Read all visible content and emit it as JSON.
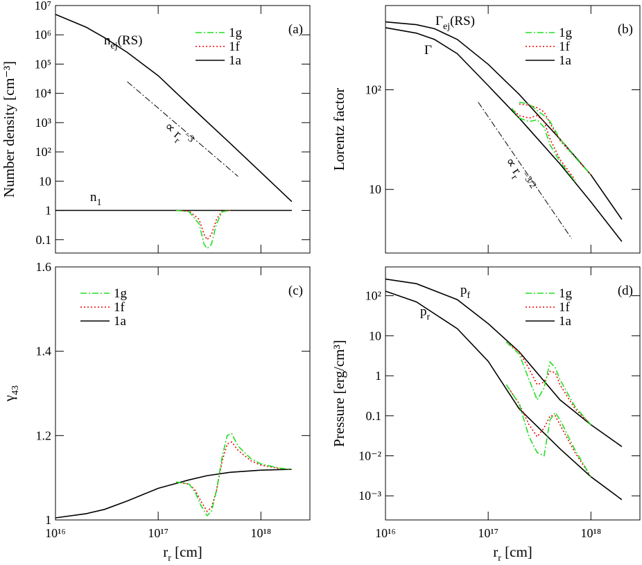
{
  "chart_data": [
    {
      "type": "line",
      "panel_label": "(a)",
      "xlog": true,
      "ylog": true,
      "ylabel": "Number density [cm⁻³]",
      "xlim": [
        1e+16,
        3e+18
      ],
      "ylim": [
        0.035,
        10000000.0
      ],
      "xticks": [
        1e+16,
        1e+17,
        1e+18
      ],
      "yticks": [
        {
          "value": 10000000.0,
          "label": "10⁷"
        },
        {
          "value": 1000000.0,
          "label": "10⁶"
        },
        {
          "value": 100000.0,
          "label": "10⁵"
        },
        {
          "value": 10000.0,
          "label": "10⁴"
        },
        {
          "value": 1000.0,
          "label": "10³"
        },
        {
          "value": 100,
          "label": "10²"
        },
        10,
        1,
        0.1
      ],
      "series": [
        {
          "name": "1g",
          "color": "#22dd22",
          "dash": "9,3,2,3",
          "lines": [
            {
              "x": [
                1.5e+17,
                2e+17,
                2.5e+17,
                2.8e+17,
                3e+17,
                3.3e+17,
                3.7e+17,
                4.2e+17,
                5e+17
              ],
              "values": [
                1,
                0.9,
                0.35,
                0.07,
                0.05,
                0.07,
                0.35,
                0.9,
                1
              ]
            }
          ]
        },
        {
          "name": "1f",
          "color": "#ee0000",
          "dash": "2,3",
          "lines": [
            {
              "x": [
                1.5e+17,
                2e+17,
                2.5e+17,
                2.8e+17,
                3e+17,
                3.3e+17,
                3.7e+17,
                4.2e+17,
                5e+17
              ],
              "values": [
                1,
                0.95,
                0.5,
                0.15,
                0.1,
                0.15,
                0.5,
                0.95,
                1
              ]
            }
          ]
        },
        {
          "name": "1a",
          "color": "#000000",
          "dash": "none",
          "lines": [
            {
              "x": [
                1e+16,
                2e+16,
                3e+16,
                5e+16,
                1e+17,
                2e+17,
                5e+17,
                1e+18,
                2e+18
              ],
              "values": [
                5000000.0,
                1800000.0,
                800000.0,
                250000.0,
                40000.0,
                4000.0,
                200,
                20,
                2
              ]
            },
            {
              "x": [
                1e+16,
                2e+18
              ],
              "values": [
                1,
                1
              ]
            }
          ]
        }
      ],
      "annotations": [
        {
          "parts": [
            {
              "text": "n"
            },
            {
              "text": "ej",
              "shift": "sub"
            },
            {
              "text": "(RS)"
            }
          ]
        },
        {
          "parts": [
            {
              "text": "n"
            },
            {
              "text": "1",
              "shift": "sub"
            }
          ]
        }
      ],
      "guide": {
        "x": [
          5e+16,
          6e+17
        ],
        "values": [
          25000.0,
          14.5
        ],
        "label": {
          "parts": [
            {
              "text": "∝ r"
            },
            {
              "text": "r",
              "shift": "sub"
            },
            {
              "text": "−3",
              "shift": "sup"
            }
          ]
        }
      }
    },
    {
      "type": "line",
      "panel_label": "(b)",
      "xlog": true,
      "ylog": true,
      "ylabel": "Lorentz factor",
      "xlim": [
        1e+16,
        3e+18
      ],
      "ylim": [
        2.3,
        700
      ],
      "xticks": [
        1e+16,
        1e+17,
        1e+18
      ],
      "yticks": [
        {
          "value": 100,
          "label": "10²"
        },
        10
      ],
      "series": [
        {
          "name": "1g",
          "color": "#22dd22",
          "dash": "9,3,2,3",
          "lines": [
            {
              "x": [
                2e+17,
                2.5e+17,
                3e+17,
                3.5e+17,
                4e+17,
                5e+17,
                7e+17,
                1e+18
              ],
              "values": [
                75,
                72,
                62,
                55,
                48,
                32,
                21,
                14
              ]
            },
            {
              "x": [
                1.7e+17,
                2e+17,
                2.5e+17,
                3e+17,
                3.5e+17,
                4e+17,
                5e+17,
                7e+17
              ],
              "values": [
                65,
                52,
                48,
                50,
                42,
                28,
                19,
                12
              ]
            }
          ]
        },
        {
          "name": "1f",
          "color": "#ee0000",
          "dash": "2,3",
          "lines": [
            {
              "x": [
                2e+17,
                2.5e+17,
                3e+17,
                3.5e+17,
                4e+17,
                5e+17,
                7e+17,
                1e+18
              ],
              "values": [
                72,
                70,
                66,
                60,
                46,
                31,
                21,
                14
              ]
            },
            {
              "x": [
                1.7e+17,
                2e+17,
                2.5e+17,
                3e+17,
                3.5e+17,
                4e+17,
                5e+17,
                7e+17
              ],
              "values": [
                65,
                55,
                52,
                55,
                48,
                32,
                20,
                12.5
              ]
            }
          ]
        },
        {
          "name": "1a",
          "color": "#000000",
          "dash": "none",
          "lines": [
            {
              "x": [
                1e+16,
                2e+16,
                3e+16,
                5e+16,
                1e+17,
                2e+17,
                5e+17,
                1e+18,
                2e+18
              ],
              "values": [
                480,
                450,
                410,
                320,
                180,
                90,
                32,
                14,
                5
              ]
            },
            {
              "x": [
                1e+16,
                2e+16,
                3e+16,
                5e+16,
                1e+17,
                2e+17,
                5e+17,
                1e+18,
                2e+18
              ],
              "values": [
                420,
                370,
                320,
                230,
                110,
                52,
                18,
                7.5,
                3
              ]
            }
          ]
        }
      ],
      "annotations": [
        {
          "parts": [
            {
              "text": "Γ"
            },
            {
              "text": "ej",
              "shift": "sub"
            },
            {
              "text": "(RS)"
            }
          ]
        },
        {
          "parts": [
            {
              "text": "Γ"
            }
          ]
        }
      ],
      "guide": {
        "x": [
          8e+16,
          6.5e+17
        ],
        "values": [
          75,
          3.2
        ],
        "label": {
          "parts": [
            {
              "text": "∝ r"
            },
            {
              "text": "r",
              "shift": "sub"
            },
            {
              "text": "−3/2",
              "shift": "sup"
            }
          ]
        }
      }
    },
    {
      "type": "line",
      "panel_label": "(c)",
      "xlog": true,
      "ylog": false,
      "ylabel": {
        "parts": [
          {
            "text": "γ"
          },
          {
            "text": "43",
            "shift": "sub"
          }
        ]
      },
      "xlabel": {
        "parts": [
          {
            "text": "r"
          },
          {
            "text": "r",
            "shift": "sub"
          },
          {
            "text": " [cm]"
          }
        ]
      },
      "xlim": [
        1e+16,
        3e+18
      ],
      "ylim": [
        1,
        1.6
      ],
      "xticks": [
        {
          "value": 1e+16,
          "label": "10¹⁶"
        },
        {
          "value": 1e+17,
          "label": "10¹⁷"
        },
        {
          "value": 1e+18,
          "label": "10¹⁸"
        }
      ],
      "yticks": [
        1,
        1.2,
        1.4,
        1.6
      ],
      "series": [
        {
          "name": "1g",
          "color": "#22dd22",
          "dash": "9,3,2,3",
          "lines": [
            {
              "x": [
                1.5e+17,
                2e+17,
                2.3e+17,
                2.6e+17,
                3e+17,
                3.3e+17,
                3.7e+17,
                4.2e+17,
                4.7e+17,
                5.2e+17,
                6e+17,
                8e+17,
                1e+18,
                1.5e+18,
                2e+18
              ],
              "values": [
                1.09,
                1.085,
                1.065,
                1.035,
                1.01,
                1.02,
                1.07,
                1.15,
                1.2,
                1.205,
                1.175,
                1.145,
                1.133,
                1.123,
                1.12
              ]
            }
          ]
        },
        {
          "name": "1f",
          "color": "#ee0000",
          "dash": "2,3",
          "lines": [
            {
              "x": [
                1.5e+17,
                2e+17,
                2.3e+17,
                2.6e+17,
                3e+17,
                3.3e+17,
                3.7e+17,
                4.2e+17,
                4.7e+17,
                5.2e+17,
                6e+17,
                8e+17,
                1e+18,
                1.5e+18,
                2e+18
              ],
              "values": [
                1.09,
                1.085,
                1.07,
                1.045,
                1.02,
                1.03,
                1.07,
                1.14,
                1.18,
                1.185,
                1.165,
                1.14,
                1.13,
                1.122,
                1.12
              ]
            }
          ]
        },
        {
          "name": "1a",
          "color": "#000000",
          "dash": "none",
          "lines": [
            {
              "x": [
                1e+16,
                2e+16,
                3e+16,
                5e+16,
                1e+17,
                2e+17,
                3e+17,
                5e+17,
                1e+18,
                2e+18
              ],
              "values": [
                1.005,
                1.015,
                1.025,
                1.045,
                1.075,
                1.095,
                1.105,
                1.113,
                1.118,
                1.12
              ]
            }
          ]
        }
      ]
    },
    {
      "type": "line",
      "panel_label": "(d)",
      "xlog": true,
      "ylog": true,
      "ylabel": "Pressure [erg/cm³]",
      "xlabel": {
        "parts": [
          {
            "text": "r"
          },
          {
            "text": "r",
            "shift": "sub"
          },
          {
            "text": " [cm]"
          }
        ]
      },
      "xlim": [
        1e+16,
        3e+18
      ],
      "ylim": [
        0.00025,
        525
      ],
      "xticks": [
        {
          "value": 1e+16,
          "label": "10¹⁶"
        },
        {
          "value": 1e+17,
          "label": "10¹⁷"
        },
        {
          "value": 1e+18,
          "label": "10¹⁸"
        }
      ],
      "yticks": [
        {
          "value": 100,
          "label": "10²"
        },
        10,
        1,
        0.1,
        {
          "value": 0.01,
          "label": "10⁻²"
        },
        {
          "value": 0.001,
          "label": "10⁻³"
        }
      ],
      "series": [
        {
          "name": "1g",
          "color": "#22dd22",
          "dash": "9,3,2,3",
          "lines": [
            {
              "x": [
                1.5e+17,
                2e+17,
                2.5e+17,
                3e+17,
                3.5e+17,
                4e+17,
                4.5e+17,
                5e+17,
                7e+17,
                1e+18
              ],
              "values": [
                7,
                3.5,
                0.8,
                0.25,
                0.5,
                2.2,
                1.6,
                0.8,
                0.17,
                0.06
              ]
            },
            {
              "x": [
                1.5e+17,
                2e+17,
                2.5e+17,
                3e+17,
                3.5e+17,
                4e+17,
                4.5e+17,
                5e+17,
                7e+17,
                1e+18
              ],
              "values": [
                0.6,
                0.2,
                0.03,
                0.012,
                0.01,
                0.08,
                0.12,
                0.08,
                0.014,
                0.003
              ]
            }
          ]
        },
        {
          "name": "1f",
          "color": "#ee0000",
          "dash": "2,3",
          "lines": [
            {
              "x": [
                1.5e+17,
                2e+17,
                2.5e+17,
                3e+17,
                3.5e+17,
                4e+17,
                4.5e+17,
                5e+17,
                7e+17,
                1e+18
              ],
              "values": [
                7,
                4,
                1.5,
                0.6,
                0.7,
                1.3,
                1.2,
                0.6,
                0.15,
                0.06
              ]
            },
            {
              "x": [
                1.5e+17,
                2e+17,
                2.5e+17,
                3e+17,
                3.5e+17,
                4e+17,
                4.5e+17,
                5e+17,
                7e+17,
                1e+18
              ],
              "values": [
                0.6,
                0.2,
                0.06,
                0.03,
                0.05,
                0.1,
                0.1,
                0.06,
                0.012,
                0.003
              ]
            }
          ]
        },
        {
          "name": "1a",
          "color": "#000000",
          "dash": "none",
          "lines": [
            {
              "x": [
                1e+16,
                2e+16,
                5e+16,
                1e+17,
                2e+17,
                5e+17,
                1e+18,
                2e+18
              ],
              "values": [
                260,
                200,
                80,
                20,
                4,
                0.25,
                0.06,
                0.017
              ]
            },
            {
              "x": [
                1e+16,
                2e+16,
                5e+16,
                1e+17,
                2e+17,
                5e+17,
                1e+18,
                2e+18
              ],
              "values": [
                130,
                70,
                15,
                2.3,
                0.15,
                0.015,
                0.003,
                0.0008
              ]
            }
          ]
        }
      ],
      "annotations": [
        {
          "parts": [
            {
              "text": "p"
            },
            {
              "text": "f",
              "shift": "sub"
            }
          ]
        },
        {
          "parts": [
            {
              "text": "p"
            },
            {
              "text": "r",
              "shift": "sub"
            }
          ]
        }
      ]
    }
  ]
}
